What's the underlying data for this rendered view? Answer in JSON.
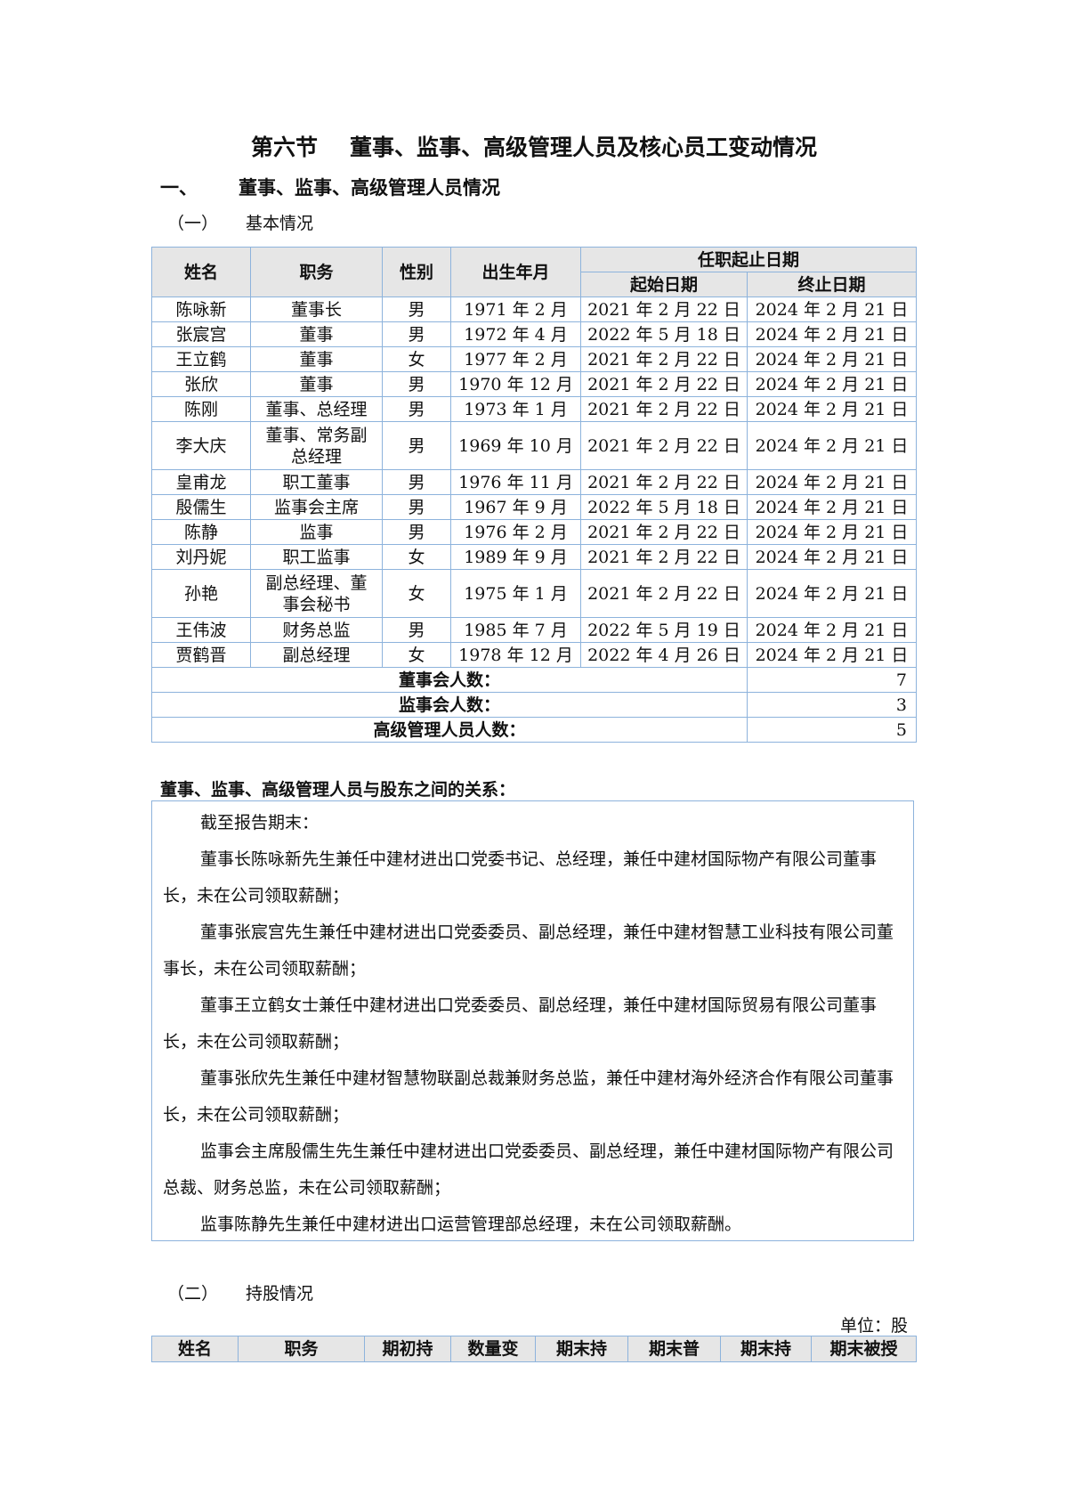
{
  "title": {
    "section": "第六节",
    "text": "董事、监事、高级管理人员及核心员工变动情况"
  },
  "heading1": {
    "num": "一、",
    "text": "董事、监事、高级管理人员情况"
  },
  "heading1_1": {
    "num": "（一）",
    "text": "基本情况"
  },
  "table1": {
    "headers": {
      "name": "姓名",
      "position": "职务",
      "gender": "性别",
      "birth": "出生年月",
      "term": "任职起止日期",
      "start": "起始日期",
      "end": "终止日期"
    },
    "rows": [
      [
        "陈咏新",
        "董事长",
        "男",
        "1971 年 2 月",
        "2021 年 2 月 22 日",
        "2024 年 2 月 21 日"
      ],
      [
        "张宸宫",
        "董事",
        "男",
        "1972 年 4 月",
        "2022 年 5 月 18 日",
        "2024 年 2 月 21 日"
      ],
      [
        "王立鹤",
        "董事",
        "女",
        "1977 年 2 月",
        "2021 年 2 月 22 日",
        "2024 年 2 月 21 日"
      ],
      [
        "张欣",
        "董事",
        "男",
        "1970 年 12 月",
        "2021 年 2 月 22 日",
        "2024 年 2 月 21 日"
      ],
      [
        "陈刚",
        "董事、总经理",
        "男",
        "1973 年 1 月",
        "2021 年 2 月 22 日",
        "2024 年 2 月 21 日"
      ],
      [
        "李大庆",
        "董事、常务副总经理",
        "男",
        "1969 年 10 月",
        "2021 年 2 月 22 日",
        "2024 年 2 月 21 日"
      ],
      [
        "皇甫龙",
        "职工董事",
        "男",
        "1976 年 11 月",
        "2021 年 2 月 22 日",
        "2024 年 2 月 21 日"
      ],
      [
        "殷儒生",
        "监事会主席",
        "男",
        "1967 年 9 月",
        "2022 年 5 月 18 日",
        "2024 年 2 月 21 日"
      ],
      [
        "陈静",
        "监事",
        "男",
        "1976 年 2 月",
        "2021 年 2 月 22 日",
        "2024 年 2 月 21 日"
      ],
      [
        "刘丹妮",
        "职工监事",
        "女",
        "1989 年 9 月",
        "2021 年 2 月 22 日",
        "2024 年 2 月 21 日"
      ],
      [
        "孙艳",
        "副总经理、董事会秘书",
        "女",
        "1975 年 1 月",
        "2021 年 2 月 22 日",
        "2024 年 2 月 21 日"
      ],
      [
        "王伟波",
        "财务总监",
        "男",
        "1985 年 7 月",
        "2022 年 5 月 19 日",
        "2024 年 2 月 21 日"
      ],
      [
        "贾鹤晋",
        "副总经理",
        "女",
        "1978 年 12 月",
        "2022 年 4 月 26 日",
        "2024 年 2 月 21 日"
      ]
    ],
    "summary": [
      {
        "label": "董事会人数：",
        "value": "7"
      },
      {
        "label": "监事会人数：",
        "value": "3"
      },
      {
        "label": "高级管理人员人数：",
        "value": "5"
      }
    ]
  },
  "relations": {
    "heading": "董事、监事、高级管理人员与股东之间的关系：",
    "paragraphs": [
      "截至报告期末：",
      "董事长陈咏新先生兼任中建材进出口党委书记、总经理，兼任中建材国际物产有限公司董事长，未在公司领取薪酬；",
      "董事张宸宫先生兼任中建材进出口党委委员、副总经理，兼任中建材智慧工业科技有限公司董事长，未在公司领取薪酬；",
      "董事王立鹤女士兼任中建材进出口党委委员、副总经理，兼任中建材国际贸易有限公司董事长，未在公司领取薪酬；",
      "董事张欣先生兼任中建材智慧物联副总裁兼财务总监，兼任中建材海外经济合作有限公司董事长，未在公司领取薪酬；",
      "监事会主席殷儒生先生兼任中建材进出口党委委员、副总经理，兼任中建材国际物产有限公司总裁、财务总监，未在公司领取薪酬；",
      "监事陈静先生兼任中建材进出口运营管理部总经理，未在公司领取薪酬。"
    ]
  },
  "heading1_2": {
    "num": "（二）",
    "text": "持股情况"
  },
  "unit": "单位：股",
  "table2": {
    "headers": [
      "姓名",
      "职务",
      "期初持",
      "数量变",
      "期末持",
      "期末普",
      "期末持",
      "期末被授"
    ]
  }
}
